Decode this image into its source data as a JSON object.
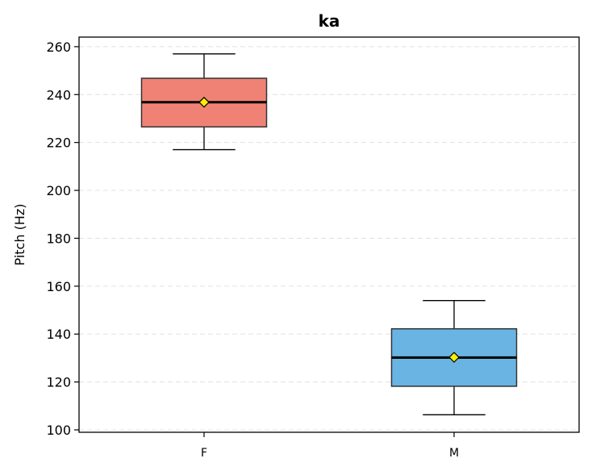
{
  "chart_data": {
    "type": "box",
    "title": "ka",
    "xlabel": "",
    "ylabel": "Pitch (Hz)",
    "ylim": [
      99,
      264
    ],
    "yticks": [
      100,
      120,
      140,
      160,
      180,
      200,
      220,
      240,
      260
    ],
    "grid": "y-dashed",
    "categories": [
      "F",
      "M"
    ],
    "boxes": [
      {
        "category": "F",
        "whisker_low": 217,
        "q1": 226.5,
        "median": 236.8,
        "q3": 246.8,
        "whisker_high": 257,
        "mean": 236.8,
        "color": "#f08275"
      },
      {
        "category": "M",
        "whisker_low": 106.3,
        "q1": 118.2,
        "median": 130.2,
        "q3": 142.2,
        "whisker_high": 154,
        "mean": 130.3,
        "color": "#6ab4e3"
      }
    ],
    "mean_marker_color": "#ffee00"
  }
}
